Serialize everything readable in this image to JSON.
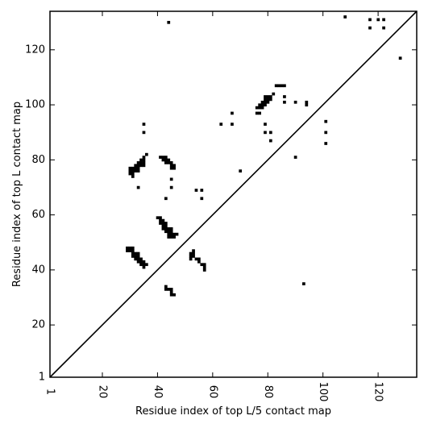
{
  "chart_data": {
    "type": "scatter",
    "xlabel": "Residue index of top L/5 contact map",
    "ylabel": "Residue index of top L contact map",
    "xlim": [
      1,
      134
    ],
    "ylim": [
      1,
      134
    ],
    "xticks": [
      1,
      20,
      40,
      60,
      80,
      100,
      120
    ],
    "yticks": [
      1,
      20,
      40,
      60,
      80,
      100,
      120
    ],
    "x_tick_rotation_deg": -90,
    "diagonal": {
      "from": [
        1,
        1
      ],
      "to": [
        134,
        134
      ],
      "color": "#000000"
    },
    "marker": {
      "shape": "square",
      "color": "#000000"
    },
    "points": [
      [
        44,
        130
      ],
      [
        108,
        132
      ],
      [
        117,
        131
      ],
      [
        120,
        131
      ],
      [
        122,
        131
      ],
      [
        117,
        128
      ],
      [
        122,
        128
      ],
      [
        128,
        117
      ],
      [
        82,
        104
      ],
      [
        83,
        107
      ],
      [
        84,
        107
      ],
      [
        85,
        107
      ],
      [
        86,
        107
      ],
      [
        79,
        103
      ],
      [
        80,
        103
      ],
      [
        81,
        103
      ],
      [
        79,
        102
      ],
      [
        80,
        102
      ],
      [
        81,
        102
      ],
      [
        78,
        101
      ],
      [
        79,
        101
      ],
      [
        80,
        101
      ],
      [
        77,
        100
      ],
      [
        78,
        100
      ],
      [
        79,
        100
      ],
      [
        76,
        99
      ],
      [
        77,
        99
      ],
      [
        78,
        99
      ],
      [
        76,
        97
      ],
      [
        77,
        97
      ],
      [
        67,
        97
      ],
      [
        86,
        103
      ],
      [
        86,
        101
      ],
      [
        90,
        101
      ],
      [
        94,
        101
      ],
      [
        94,
        100
      ],
      [
        63,
        93
      ],
      [
        67,
        93
      ],
      [
        79,
        93
      ],
      [
        35,
        93
      ],
      [
        35,
        90
      ],
      [
        79,
        90
      ],
      [
        81,
        90
      ],
      [
        101,
        94
      ],
      [
        101,
        90
      ],
      [
        81,
        87
      ],
      [
        101,
        86
      ],
      [
        90,
        81
      ],
      [
        70,
        76
      ],
      [
        36,
        82
      ],
      [
        35,
        81
      ],
      [
        41,
        81
      ],
      [
        42,
        81
      ],
      [
        43,
        81
      ],
      [
        42,
        80
      ],
      [
        43,
        80
      ],
      [
        44,
        80
      ],
      [
        34,
        80
      ],
      [
        35,
        80
      ],
      [
        33,
        79
      ],
      [
        34,
        79
      ],
      [
        35,
        79
      ],
      [
        43,
        79
      ],
      [
        44,
        79
      ],
      [
        45,
        79
      ],
      [
        32,
        78
      ],
      [
        33,
        78
      ],
      [
        34,
        78
      ],
      [
        35,
        78
      ],
      [
        45,
        78
      ],
      [
        46,
        78
      ],
      [
        30,
        77
      ],
      [
        31,
        77
      ],
      [
        32,
        77
      ],
      [
        33,
        77
      ],
      [
        45,
        77
      ],
      [
        46,
        77
      ],
      [
        30,
        76
      ],
      [
        31,
        76
      ],
      [
        32,
        76
      ],
      [
        33,
        76
      ],
      [
        30,
        75
      ],
      [
        31,
        75
      ],
      [
        31,
        74
      ],
      [
        45,
        73
      ],
      [
        33,
        70
      ],
      [
        45,
        70
      ],
      [
        54,
        69
      ],
      [
        56,
        69
      ],
      [
        43,
        66
      ],
      [
        56,
        66
      ],
      [
        40,
        59
      ],
      [
        41,
        59
      ],
      [
        41,
        58
      ],
      [
        42,
        58
      ],
      [
        41,
        57
      ],
      [
        42,
        57
      ],
      [
        43,
        57
      ],
      [
        42,
        56
      ],
      [
        43,
        56
      ],
      [
        42,
        55
      ],
      [
        43,
        55
      ],
      [
        44,
        55
      ],
      [
        45,
        55
      ],
      [
        43,
        54
      ],
      [
        44,
        54
      ],
      [
        45,
        54
      ],
      [
        44,
        53
      ],
      [
        45,
        53
      ],
      [
        46,
        53
      ],
      [
        47,
        53
      ],
      [
        44,
        52
      ],
      [
        45,
        52
      ],
      [
        46,
        52
      ],
      [
        29,
        48
      ],
      [
        30,
        48
      ],
      [
        31,
        48
      ],
      [
        29,
        47
      ],
      [
        30,
        47
      ],
      [
        31,
        47
      ],
      [
        53,
        47
      ],
      [
        31,
        46
      ],
      [
        32,
        46
      ],
      [
        33,
        46
      ],
      [
        52,
        46
      ],
      [
        53,
        46
      ],
      [
        31,
        45
      ],
      [
        32,
        45
      ],
      [
        33,
        45
      ],
      [
        52,
        45
      ],
      [
        53,
        45
      ],
      [
        32,
        44
      ],
      [
        33,
        44
      ],
      [
        34,
        44
      ],
      [
        52,
        44
      ],
      [
        54,
        44
      ],
      [
        55,
        44
      ],
      [
        33,
        43
      ],
      [
        34,
        43
      ],
      [
        35,
        43
      ],
      [
        55,
        43
      ],
      [
        34,
        42
      ],
      [
        35,
        42
      ],
      [
        36,
        42
      ],
      [
        56,
        42
      ],
      [
        57,
        42
      ],
      [
        35,
        41
      ],
      [
        57,
        41
      ],
      [
        57,
        40
      ],
      [
        43,
        34
      ],
      [
        43,
        33
      ],
      [
        44,
        33
      ],
      [
        45,
        33
      ],
      [
        45,
        32
      ],
      [
        45,
        31
      ],
      [
        46,
        31
      ],
      [
        93,
        35
      ]
    ]
  }
}
